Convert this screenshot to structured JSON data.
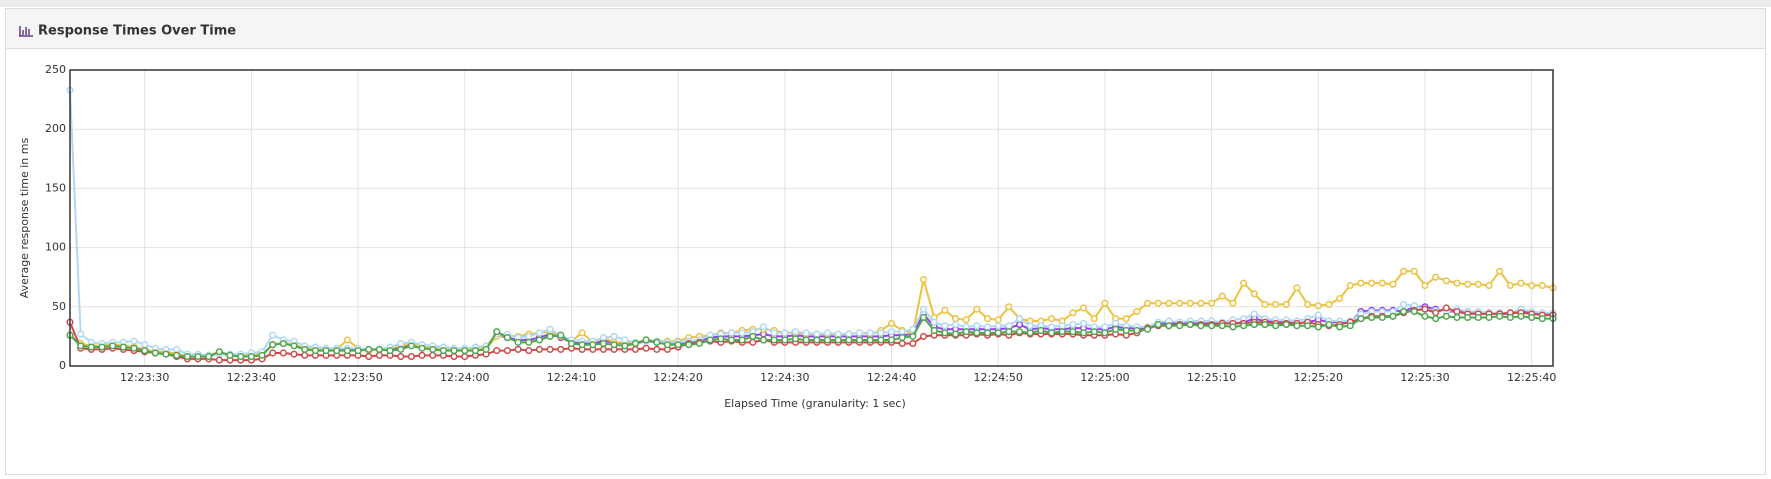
{
  "chart_data": {
    "type": "line",
    "title": "Response Times Over Time",
    "x_label": "Elapsed Time (granularity: 1 sec)",
    "y_label": "Average response time in ms",
    "x": [
      "12:23:23",
      "12:23:24",
      "12:23:25",
      "12:23:26",
      "12:23:27",
      "12:23:28",
      "12:23:29",
      "12:23:30",
      "12:23:31",
      "12:23:32",
      "12:23:33",
      "12:23:34",
      "12:23:35",
      "12:23:36",
      "12:23:37",
      "12:23:38",
      "12:23:39",
      "12:23:40",
      "12:23:41",
      "12:23:42",
      "12:23:43",
      "12:23:44",
      "12:23:45",
      "12:23:46",
      "12:23:47",
      "12:23:48",
      "12:23:49",
      "12:23:50",
      "12:23:51",
      "12:23:52",
      "12:23:53",
      "12:23:54",
      "12:23:55",
      "12:23:56",
      "12:23:57",
      "12:23:58",
      "12:23:59",
      "12:24:00",
      "12:24:01",
      "12:24:02",
      "12:24:03",
      "12:24:04",
      "12:24:05",
      "12:24:06",
      "12:24:07",
      "12:24:08",
      "12:24:09",
      "12:24:10",
      "12:24:11",
      "12:24:12",
      "12:24:13",
      "12:24:14",
      "12:24:15",
      "12:24:16",
      "12:24:17",
      "12:24:18",
      "12:24:19",
      "12:24:20",
      "12:24:21",
      "12:24:22",
      "12:24:23",
      "12:24:24",
      "12:24:25",
      "12:24:26",
      "12:24:27",
      "12:24:28",
      "12:24:29",
      "12:24:30",
      "12:24:31",
      "12:24:32",
      "12:24:33",
      "12:24:34",
      "12:24:35",
      "12:24:36",
      "12:24:37",
      "12:24:38",
      "12:24:39",
      "12:24:40",
      "12:24:41",
      "12:24:42",
      "12:24:43",
      "12:24:44",
      "12:24:45",
      "12:24:46",
      "12:24:47",
      "12:24:48",
      "12:24:49",
      "12:24:50",
      "12:24:51",
      "12:24:52",
      "12:24:53",
      "12:24:54",
      "12:24:55",
      "12:24:56",
      "12:24:57",
      "12:24:58",
      "12:24:59",
      "12:25:00",
      "12:25:01",
      "12:25:02",
      "12:25:03",
      "12:25:04",
      "12:25:05",
      "12:25:06",
      "12:25:07",
      "12:25:08",
      "12:25:09",
      "12:25:10",
      "12:25:11",
      "12:25:12",
      "12:25:13",
      "12:25:14",
      "12:25:15",
      "12:25:16",
      "12:25:17",
      "12:25:18",
      "12:25:19",
      "12:25:20",
      "12:25:21",
      "12:25:22",
      "12:25:23",
      "12:25:24",
      "12:25:25",
      "12:25:26",
      "12:25:27",
      "12:25:28",
      "12:25:29",
      "12:25:30",
      "12:25:31",
      "12:25:32",
      "12:25:33",
      "12:25:34",
      "12:25:35",
      "12:25:36",
      "12:25:37",
      "12:25:38",
      "12:25:39",
      "12:25:40",
      "12:25:41",
      "12:25:42"
    ],
    "series": [
      {
        "color": "#9440ed",
        "values": [
          26,
          18,
          17,
          17,
          18,
          17,
          16,
          14,
          12,
          12,
          10,
          8,
          8,
          8,
          11,
          9,
          9,
          9,
          10,
          18,
          19,
          18,
          15,
          14,
          14,
          14,
          14,
          14,
          13,
          14,
          14,
          16,
          18,
          16,
          15,
          14,
          14,
          14,
          15,
          15,
          26,
          24,
          22,
          22,
          24,
          27,
          24,
          20,
          19,
          19,
          21,
          20,
          19,
          19,
          21,
          20,
          19,
          19,
          20,
          21,
          24,
          25,
          25,
          25,
          26,
          27,
          25,
          25,
          26,
          25,
          25,
          25,
          25,
          25,
          25,
          25,
          25,
          26,
          26,
          27,
          44,
          33,
          31,
          31,
          31,
          31,
          31,
          31,
          32,
          35,
          31,
          32,
          31,
          31,
          32,
          32,
          31,
          31,
          33,
          32,
          32,
          32,
          36,
          36,
          36,
          36,
          36,
          36,
          36,
          36,
          37,
          40,
          38,
          37,
          37,
          36,
          37,
          39,
          37,
          37,
          37,
          46,
          47,
          47,
          47,
          46,
          50,
          50,
          48,
          46,
          46,
          46,
          45,
          45,
          44,
          44,
          46,
          45,
          44,
          44
        ]
      },
      {
        "color": "#edc240",
        "values": [
          26,
          19,
          17,
          17,
          18,
          17,
          16,
          14,
          12,
          12,
          10,
          8,
          8,
          9,
          12,
          9,
          9,
          9,
          10,
          18,
          20,
          18,
          15,
          14,
          14,
          14,
          22,
          15,
          13,
          14,
          15,
          17,
          19,
          16,
          15,
          14,
          14,
          14,
          15,
          15,
          25,
          26,
          25,
          27,
          28,
          29,
          25,
          21,
          28,
          20,
          24,
          20,
          20,
          20,
          22,
          21,
          21,
          21,
          24,
          25,
          26,
          28,
          28,
          30,
          31,
          31,
          30,
          28,
          28,
          27,
          27,
          27,
          26,
          27,
          28,
          27,
          30,
          36,
          30,
          28,
          73,
          41,
          47,
          40,
          39,
          48,
          40,
          39,
          50,
          40,
          38,
          38,
          40,
          38,
          45,
          49,
          40,
          53,
          40,
          40,
          46,
          53,
          53,
          53,
          53,
          53,
          53,
          53,
          59,
          53,
          70,
          61,
          52,
          52,
          52,
          66,
          52,
          51,
          52,
          57,
          68,
          70,
          70,
          70,
          69,
          80,
          80,
          68,
          75,
          72,
          70,
          69,
          69,
          68,
          80,
          68,
          70,
          68,
          68,
          66
        ]
      },
      {
        "color": "#afd8f8",
        "values": [
          233,
          27,
          20,
          19,
          20,
          20,
          21,
          18,
          15,
          14,
          14,
          10,
          10,
          9,
          10,
          10,
          10,
          11,
          12,
          26,
          22,
          21,
          17,
          16,
          15,
          15,
          15,
          15,
          14,
          14,
          16,
          19,
          20,
          18,
          17,
          16,
          15,
          15,
          16,
          17,
          27,
          27,
          24,
          25,
          28,
          31,
          26,
          22,
          21,
          21,
          24,
          25,
          22,
          20,
          21,
          21,
          20,
          20,
          21,
          22,
          26,
          27,
          28,
          28,
          29,
          33,
          28,
          28,
          29,
          28,
          27,
          28,
          27,
          27,
          28,
          28,
          28,
          29,
          29,
          31,
          48,
          37,
          34,
          35,
          33,
          34,
          33,
          34,
          34,
          40,
          34,
          34,
          33,
          34,
          35,
          36,
          33,
          33,
          36,
          34,
          33,
          33,
          37,
          38,
          37,
          38,
          38,
          38,
          37,
          39,
          40,
          44,
          40,
          39,
          39,
          38,
          40,
          43,
          38,
          38,
          38,
          44,
          46,
          46,
          46,
          52,
          51,
          48,
          47,
          46,
          48,
          46,
          46,
          45,
          45,
          45,
          48,
          46,
          45,
          45
        ]
      },
      {
        "color": "#cb4b4b",
        "values": [
          37,
          15,
          14,
          14,
          15,
          14,
          13,
          12,
          11,
          10,
          8,
          6,
          6,
          6,
          5,
          5,
          5,
          5,
          6,
          11,
          11,
          10,
          9,
          9,
          9,
          9,
          9,
          9,
          8,
          9,
          9,
          8,
          8,
          9,
          9,
          9,
          8,
          8,
          9,
          10,
          13,
          13,
          14,
          13,
          14,
          14,
          14,
          15,
          14,
          14,
          14,
          14,
          14,
          14,
          15,
          14,
          14,
          16,
          19,
          20,
          21,
          20,
          21,
          20,
          20,
          22,
          20,
          20,
          20,
          20,
          20,
          20,
          20,
          20,
          20,
          20,
          20,
          20,
          19,
          19,
          25,
          26,
          26,
          26,
          26,
          27,
          26,
          27,
          26,
          28,
          27,
          27,
          27,
          27,
          27,
          26,
          26,
          26,
          27,
          26,
          28,
          32,
          34,
          34,
          35,
          35,
          35,
          35,
          36,
          36,
          36,
          37,
          37,
          36,
          36,
          36,
          37,
          35,
          34,
          35,
          37,
          40,
          42,
          42,
          42,
          45,
          47,
          48,
          45,
          49,
          46,
          44,
          44,
          44,
          44,
          45,
          45,
          44,
          43,
          43
        ]
      },
      {
        "color": "#4da74d",
        "values": [
          26,
          17,
          16,
          16,
          17,
          16,
          15,
          13,
          11,
          10,
          9,
          8,
          8,
          8,
          12,
          9,
          8,
          8,
          9,
          18,
          19,
          17,
          14,
          13,
          13,
          13,
          13,
          13,
          14,
          14,
          13,
          14,
          17,
          15,
          14,
          13,
          13,
          13,
          13,
          14,
          29,
          24,
          20,
          20,
          22,
          25,
          26,
          19,
          18,
          18,
          19,
          18,
          17,
          19,
          22,
          20,
          18,
          18,
          18,
          19,
          22,
          23,
          22,
          22,
          25,
          22,
          22,
          22,
          23,
          22,
          22,
          22,
          22,
          22,
          22,
          22,
          22,
          22,
          24,
          25,
          41,
          30,
          28,
          27,
          29,
          28,
          28,
          28,
          29,
          29,
          28,
          30,
          28,
          29,
          29,
          28,
          29,
          28,
          31,
          30,
          30,
          31,
          35,
          34,
          34,
          35,
          34,
          34,
          34,
          33,
          34,
          35,
          35,
          34,
          35,
          34,
          34,
          33,
          35,
          33,
          34,
          40,
          41,
          41,
          42,
          46,
          46,
          42,
          40,
          42,
          41,
          41,
          41,
          41,
          42,
          41,
          42,
          41,
          40,
          40
        ]
      }
    ],
    "xlim": [
      "12:23:23",
      "12:25:42"
    ],
    "xticks": [
      "12:23:30",
      "12:23:40",
      "12:23:50",
      "12:24:00",
      "12:24:10",
      "12:24:20",
      "12:24:30",
      "12:24:40",
      "12:24:50",
      "12:25:00",
      "12:25:10",
      "12:25:20",
      "12:25:30",
      "12:25:40"
    ],
    "ylim": [
      0,
      250
    ],
    "yticks": [
      0,
      50,
      100,
      150,
      200,
      250
    ],
    "grid": true
  }
}
